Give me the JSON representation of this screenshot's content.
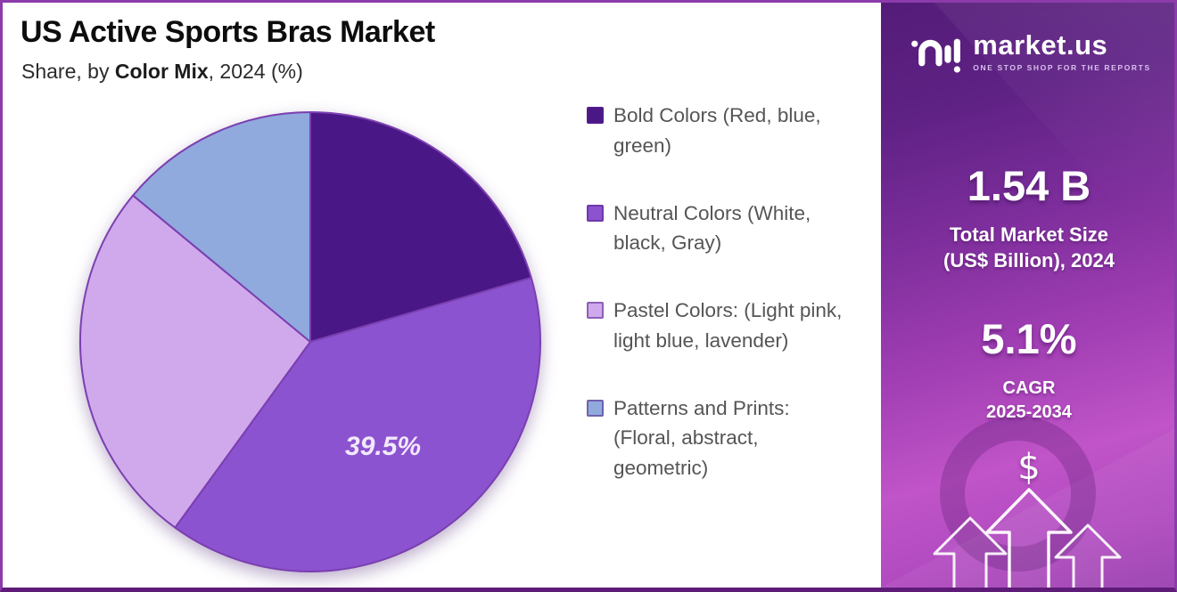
{
  "header": {
    "title": "US Active Sports Bras Market",
    "subtitle_prefix": "Share, by ",
    "subtitle_emphasis": "Color Mix",
    "subtitle_suffix": ", 2024 (%)"
  },
  "chart_data": {
    "type": "pie",
    "title": "US Active Sports Bras Market — Share, by Color Mix, 2024 (%)",
    "unit": "%",
    "start_angle_deg": 0,
    "direction": "clockwise",
    "slice_stroke": "#7B3FB0",
    "slices": [
      {
        "label": "Bold Colors (Red, blue, green)",
        "value": 20.5,
        "color": "#4A1787",
        "data_label": ""
      },
      {
        "label": "Neutral Colors (White, black, Gray)",
        "value": 39.5,
        "color": "#8C53D0",
        "data_label": "39.5%"
      },
      {
        "label": "Pastel Colors: (Light pink, light blue, lavender)",
        "value": 26.0,
        "color": "#CFA9EC",
        "data_label": ""
      },
      {
        "label": "Patterns and Prints: (Floral, abstract, geometric)",
        "value": 14.0,
        "color": "#90AADD",
        "data_label": ""
      }
    ],
    "legend_position": "right"
  },
  "sidebar": {
    "logo": {
      "brand": "market.us",
      "tagline": "ONE STOP SHOP FOR THE REPORTS"
    },
    "stats": [
      {
        "value": "1.54 B",
        "label_line1": "Total Market Size",
        "label_line2": "(US$ Billion), 2024"
      },
      {
        "value": "5.1%",
        "label_line1": "CAGR",
        "label_line2": "2025-2034"
      }
    ],
    "dollar_icon": "$"
  },
  "colors": {
    "frame_border": "#8C3BAA",
    "frame_border_bottom": "#5E1B77",
    "sidebar_top": "#541C78",
    "sidebar_magenta": "#C054C8",
    "legend_text": "#555555",
    "pie_label_text": "#F2E9FC"
  }
}
